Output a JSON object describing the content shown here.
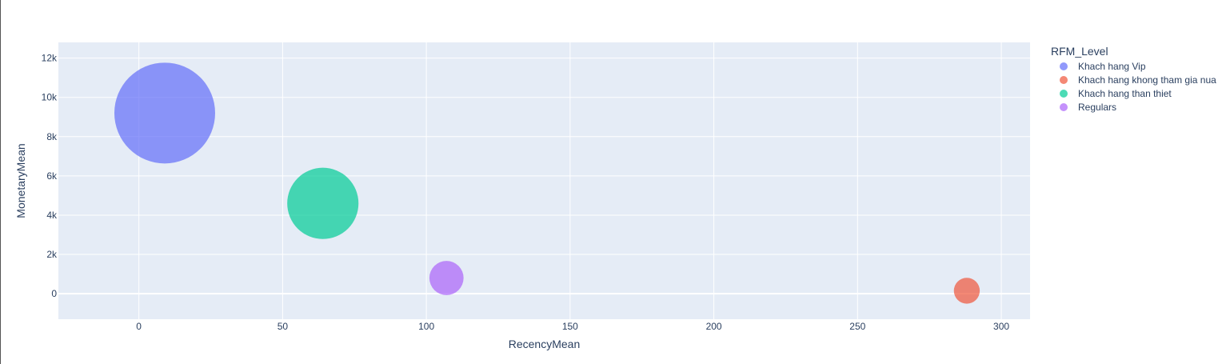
{
  "chart_data": {
    "type": "scatter",
    "subtype": "bubble",
    "xlabel": "RecencyMean",
    "ylabel": "MonetaryMean",
    "xlim": [
      -28,
      310
    ],
    "ylim": [
      -1300,
      12800
    ],
    "xticks": [
      0,
      50,
      100,
      150,
      200,
      250,
      300
    ],
    "xtick_labels": [
      "0",
      "50",
      "100",
      "150",
      "200",
      "250",
      "300"
    ],
    "yticks": [
      0,
      2000,
      4000,
      6000,
      8000,
      10000,
      12000
    ],
    "ytick_labels": [
      "0",
      "2k",
      "4k",
      "6k",
      "8k",
      "10k",
      "12k"
    ],
    "grid": true,
    "legend_title": "RFM_Level",
    "legend_position": "right",
    "colors": {
      "plot_bg": "#e5ecf6",
      "grid": "#ffffff",
      "text": "#2a3f5f"
    },
    "series": [
      {
        "name": "Khach hang Vip",
        "color": "#636efa",
        "x": 9,
        "y": 9200,
        "size": 1000
      },
      {
        "name": "Khach hang khong tham gia nua",
        "color": "#ef553b",
        "x": 288,
        "y": 150,
        "size": 66
      },
      {
        "name": "Khach hang than thiet",
        "color": "#00cc96",
        "x": 64,
        "y": 4600,
        "size": 500
      },
      {
        "name": "Regulars",
        "color": "#ab63fa",
        "x": 107,
        "y": 800,
        "size": 115
      }
    ]
  }
}
